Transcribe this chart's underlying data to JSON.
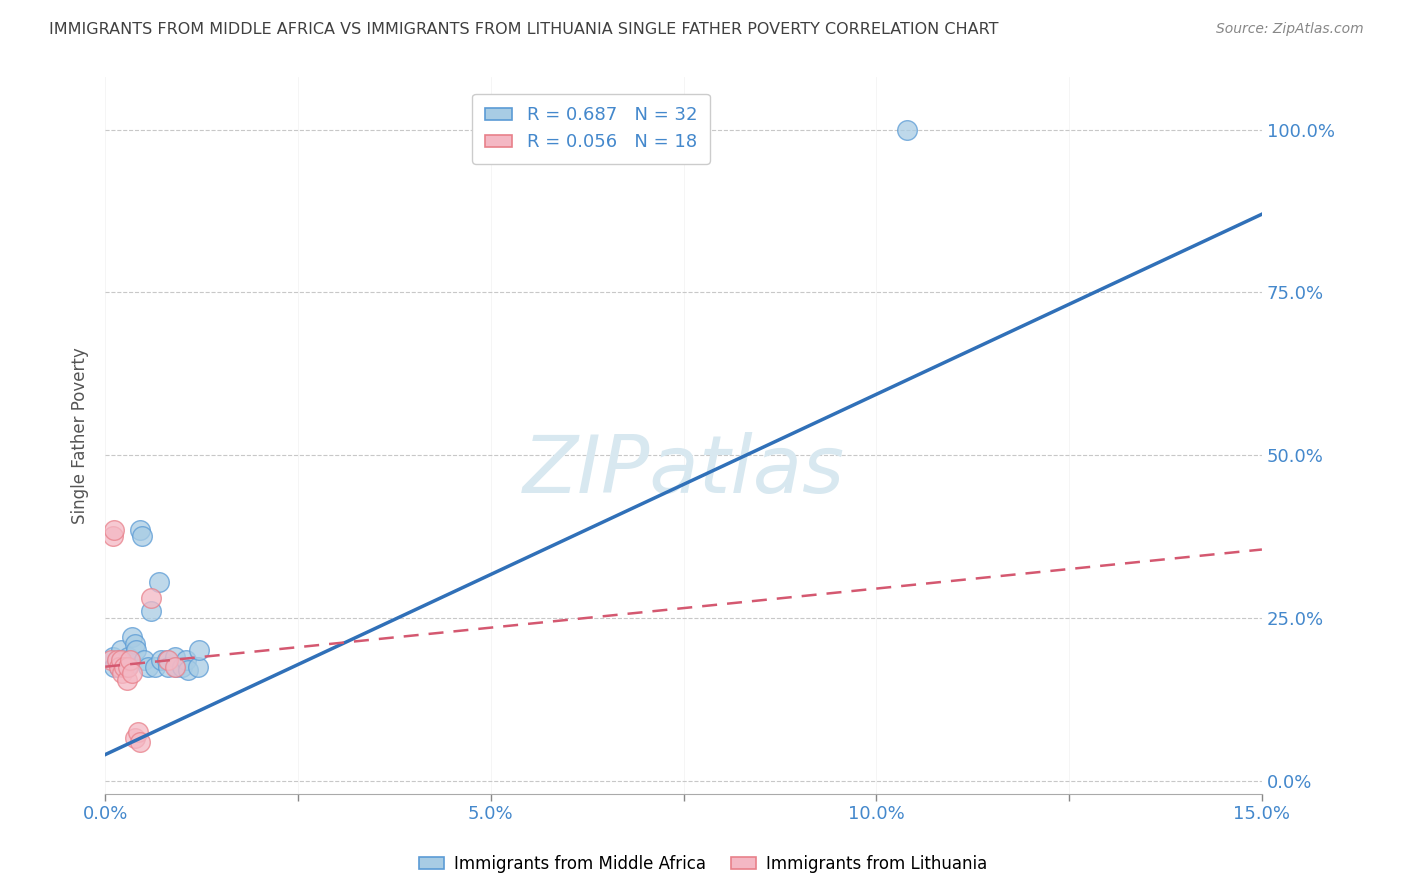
{
  "title": "IMMIGRANTS FROM MIDDLE AFRICA VS IMMIGRANTS FROM LITHUANIA SINGLE FATHER POVERTY CORRELATION CHART",
  "source": "Source: ZipAtlas.com",
  "ylabel": "Single Father Poverty",
  "xlim": [
    0.0,
    0.15
  ],
  "ylim": [
    -0.02,
    1.08
  ],
  "xticks": [
    0.0,
    0.025,
    0.05,
    0.075,
    0.1,
    0.125,
    0.15
  ],
  "xticklabels": [
    "0.0%",
    "",
    "5.0%",
    "",
    "10.0%",
    "",
    "15.0%"
  ],
  "yticks": [
    0.0,
    0.25,
    0.5,
    0.75,
    1.0
  ],
  "right_yticklabels": [
    "0.0%",
    "25.0%",
    "50.0%",
    "75.0%",
    "100.0%"
  ],
  "blue_R": 0.687,
  "blue_N": 32,
  "pink_R": 0.056,
  "pink_N": 18,
  "blue_color": "#a8cce4",
  "pink_color": "#f4b8c4",
  "blue_edge_color": "#5b9bd5",
  "pink_edge_color": "#e8808a",
  "trend_blue_color": "#3070b8",
  "trend_pink_color": "#d45870",
  "watermark_color": "#d8e8f0",
  "background_color": "#ffffff",
  "grid_color": "#c8c8c8",
  "title_color": "#404040",
  "axis_label_color": "#4488cc",
  "blue_points": [
    [
      0.001,
      0.19
    ],
    [
      0.0012,
      0.175
    ],
    [
      0.0015,
      0.185
    ],
    [
      0.0018,
      0.175
    ],
    [
      0.002,
      0.2
    ],
    [
      0.002,
      0.185
    ],
    [
      0.0022,
      0.185
    ],
    [
      0.0025,
      0.185
    ],
    [
      0.0028,
      0.175
    ],
    [
      0.003,
      0.19
    ],
    [
      0.0032,
      0.185
    ],
    [
      0.0035,
      0.22
    ],
    [
      0.0038,
      0.21
    ],
    [
      0.004,
      0.2
    ],
    [
      0.0045,
      0.385
    ],
    [
      0.0048,
      0.375
    ],
    [
      0.005,
      0.185
    ],
    [
      0.0055,
      0.175
    ],
    [
      0.006,
      0.26
    ],
    [
      0.0065,
      0.175
    ],
    [
      0.007,
      0.305
    ],
    [
      0.0072,
      0.185
    ],
    [
      0.008,
      0.185
    ],
    [
      0.0082,
      0.175
    ],
    [
      0.009,
      0.19
    ],
    [
      0.0092,
      0.175
    ],
    [
      0.01,
      0.175
    ],
    [
      0.0105,
      0.185
    ],
    [
      0.0108,
      0.17
    ],
    [
      0.012,
      0.175
    ],
    [
      0.0122,
      0.2
    ],
    [
      0.104,
      1.0
    ]
  ],
  "pink_points": [
    [
      0.0008,
      0.185
    ],
    [
      0.001,
      0.375
    ],
    [
      0.0012,
      0.385
    ],
    [
      0.0015,
      0.185
    ],
    [
      0.0018,
      0.175
    ],
    [
      0.002,
      0.185
    ],
    [
      0.0022,
      0.165
    ],
    [
      0.0025,
      0.175
    ],
    [
      0.0028,
      0.155
    ],
    [
      0.003,
      0.175
    ],
    [
      0.0032,
      0.185
    ],
    [
      0.0035,
      0.165
    ],
    [
      0.0038,
      0.065
    ],
    [
      0.0042,
      0.075
    ],
    [
      0.0045,
      0.06
    ],
    [
      0.006,
      0.28
    ],
    [
      0.0082,
      0.185
    ],
    [
      0.009,
      0.175
    ]
  ],
  "blue_trend": [
    0.0,
    0.04,
    0.15,
    0.87
  ],
  "pink_trend": [
    0.0,
    0.175,
    0.15,
    0.355
  ],
  "figsize": [
    14.06,
    8.92
  ],
  "dpi": 100
}
